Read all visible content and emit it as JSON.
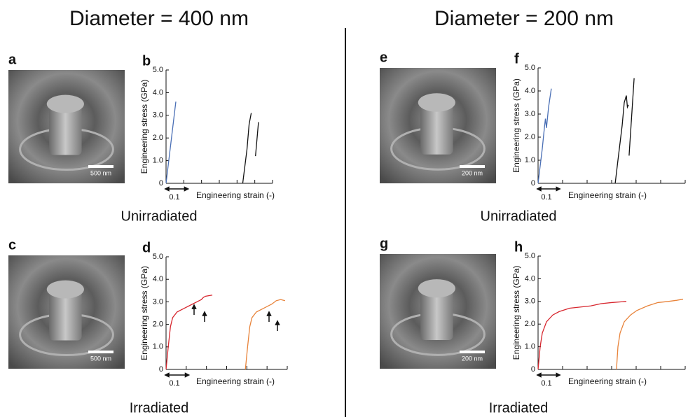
{
  "headings": [
    "Diameter = 400 nm",
    "Diameter = 200 nm"
  ],
  "conditions": [
    "Unirradiated",
    "Irradiated",
    "Unirradiated",
    "Irradiated"
  ],
  "images": [
    {
      "label": "a",
      "scale_bar": "500 nm"
    },
    {
      "label": "c",
      "scale_bar": "500 nm"
    },
    {
      "label": "e",
      "scale_bar": "200 nm"
    },
    {
      "label": "g",
      "scale_bar": "200 nm"
    }
  ],
  "chart_data": [
    {
      "type": "line",
      "panel_label": "b",
      "x_label": "Engineering strain (-)",
      "y_label": "Engineering stress (GPa)",
      "xlim": [
        0,
        0.5
      ],
      "ylim": [
        0,
        5
      ],
      "yticks": [
        0,
        {
          "value": 1,
          "label": "1.0"
        },
        {
          "value": 2,
          "label": "2.0"
        },
        {
          "value": 3,
          "label": "3.0"
        },
        {
          "value": 4,
          "label": "4.0"
        },
        {
          "value": 5,
          "label": "5.0"
        }
      ],
      "x_scale_bar": {
        "value": 0.1,
        "label": "0.1"
      },
      "series": [
        {
          "color": "#4a6fb5",
          "x": [
            0,
            0.046
          ],
          "values": [
            0,
            3.6
          ]
        },
        {
          "color": "#111111",
          "x": [
            0.36,
            0.38,
            0.39,
            0.4
          ],
          "values": [
            0,
            1.5,
            2.6,
            3.1
          ]
        },
        {
          "color": "#111111",
          "x": [
            0.42,
            0.434
          ],
          "values": [
            1.2,
            2.7
          ]
        }
      ]
    },
    {
      "type": "line",
      "panel_label": "d",
      "x_label": "Engineering strain (-)",
      "y_label": "Engineering stress (GPa)",
      "xlim": [
        0,
        0.55
      ],
      "ylim": [
        0,
        5
      ],
      "yticks": [
        0,
        {
          "value": 1,
          "label": "1.0"
        },
        {
          "value": 2,
          "label": "2.0"
        },
        {
          "value": 3,
          "label": "3.0"
        },
        {
          "value": 4,
          "label": "4.0"
        },
        {
          "value": 5,
          "label": "5.0"
        }
      ],
      "x_scale_bar": {
        "value": 0.1,
        "label": "0.1"
      },
      "series": [
        {
          "color": "#d7262e",
          "x": [
            0,
            0.01,
            0.02,
            0.03,
            0.05,
            0.08,
            0.12,
            0.15,
            0.16,
            0.17,
            0.18,
            0.21
          ],
          "values": [
            0,
            1.0,
            1.9,
            2.3,
            2.55,
            2.7,
            2.9,
            3.05,
            3.1,
            3.2,
            3.25,
            3.3
          ]
        },
        {
          "color": "#e8833a",
          "x": [
            0.36,
            0.37,
            0.38,
            0.39,
            0.41,
            0.44,
            0.48,
            0.5,
            0.52,
            0.54
          ],
          "values": [
            0,
            1.0,
            1.9,
            2.3,
            2.55,
            2.7,
            2.9,
            3.05,
            3.1,
            3.05
          ]
        }
      ]
    },
    {
      "type": "line",
      "panel_label": "f",
      "x_label": "Engineering strain (-)",
      "y_label": "Engineering stress (GPa)",
      "xlim": [
        0,
        0.7
      ],
      "ylim": [
        0,
        5
      ],
      "yticks": [
        0,
        {
          "value": 1,
          "label": "1.0"
        },
        {
          "value": 2,
          "label": "2.0"
        },
        {
          "value": 3,
          "label": "3.0"
        },
        {
          "value": 4,
          "label": "4.0"
        },
        {
          "value": 5,
          "label": "5.0"
        }
      ],
      "x_scale_bar": {
        "value": 0.1,
        "label": "0.1"
      },
      "series": [
        {
          "color": "#4a6fb5",
          "x": [
            0,
            0.02,
            0.03,
            0.035,
            0.04,
            0.05,
            0.063
          ],
          "values": [
            0,
            1.5,
            2.4,
            2.8,
            2.4,
            3.3,
            4.1
          ]
        },
        {
          "color": "#111111",
          "x": [
            0.367,
            0.38,
            0.4,
            0.41,
            0.42,
            0.425,
            0.43
          ],
          "values": [
            0,
            1.0,
            2.5,
            3.5,
            3.8,
            3.3,
            3.4
          ]
        },
        {
          "color": "#111111",
          "x": [
            0.433,
            0.457
          ],
          "values": [
            1.2,
            4.55
          ]
        }
      ]
    },
    {
      "type": "line",
      "panel_label": "h",
      "x_label": "Engineering strain (-)",
      "y_label": "Engineering stress (GPa)",
      "xlim": [
        0,
        0.7
      ],
      "ylim": [
        0,
        5
      ],
      "yticks": [
        0,
        {
          "value": 1,
          "label": "1.0"
        },
        {
          "value": 2,
          "label": "2.0"
        },
        {
          "value": 3,
          "label": "3.0"
        },
        {
          "value": 4,
          "label": "4.0"
        },
        {
          "value": 5,
          "label": "5.0"
        }
      ],
      "x_scale_bar": {
        "value": 0.1,
        "label": "0.1"
      },
      "series": [
        {
          "color": "#d7262e",
          "x": [
            0,
            0.01,
            0.02,
            0.04,
            0.07,
            0.1,
            0.15,
            0.2,
            0.25,
            0.3,
            0.35,
            0.42
          ],
          "values": [
            0,
            1.0,
            1.6,
            2.1,
            2.4,
            2.55,
            2.7,
            2.75,
            2.8,
            2.9,
            2.95,
            3.0
          ]
        },
        {
          "color": "#e8833a",
          "x": [
            0.373,
            0.38,
            0.39,
            0.41,
            0.44,
            0.47,
            0.52,
            0.57,
            0.62,
            0.66,
            0.69
          ],
          "values": [
            0,
            1.0,
            1.6,
            2.1,
            2.4,
            2.6,
            2.8,
            2.95,
            3.0,
            3.05,
            3.1
          ]
        }
      ]
    }
  ]
}
